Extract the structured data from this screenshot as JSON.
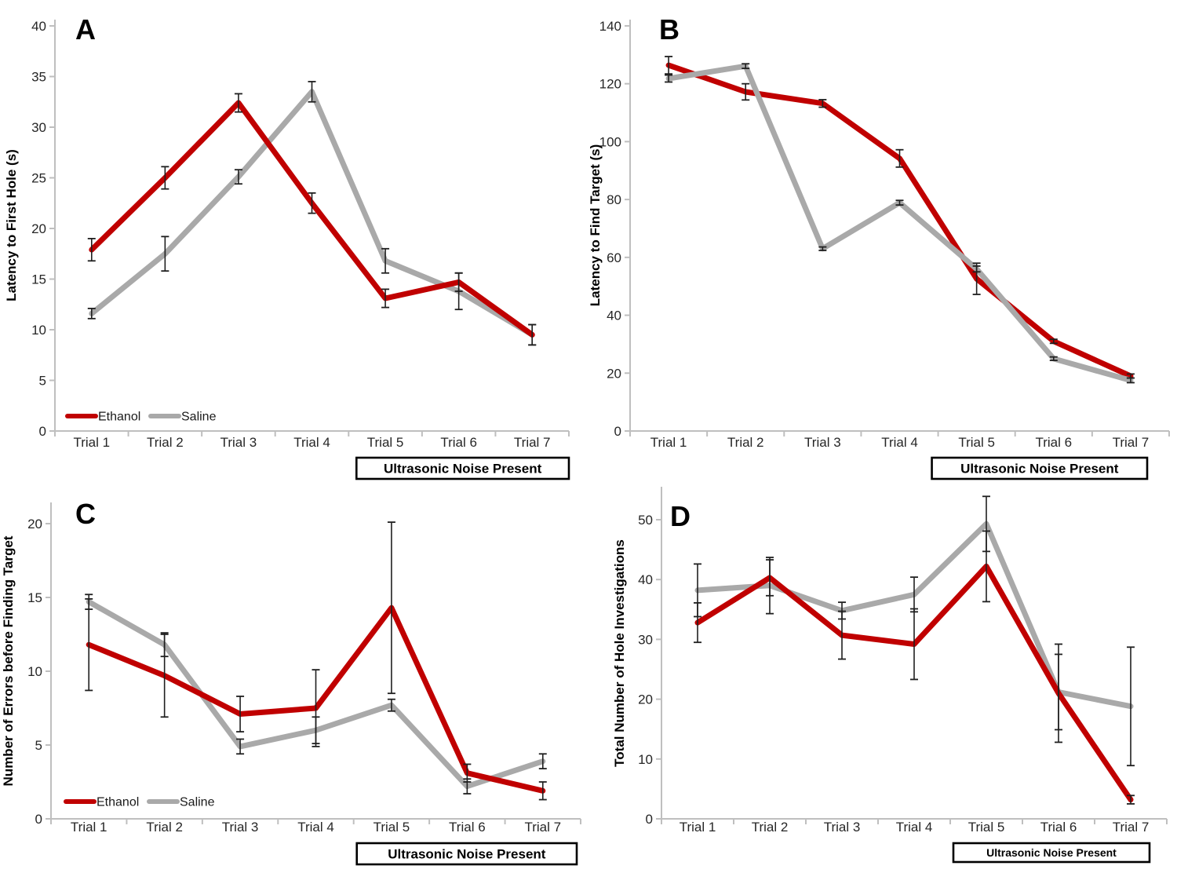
{
  "figure_title": "",
  "legend": {
    "ethanol_label": "Ethanol",
    "saline_label": "Saline"
  },
  "noise_box_label": "Ultrasonic Noise Present",
  "colors": {
    "ethanol": "#C00000",
    "saline": "#A9A9A9",
    "axis": "#BFBFBF",
    "error_bar": "#1F1F1F",
    "box_border": "#000000",
    "text": "#262626"
  },
  "categories": [
    "Trial 1",
    "Trial 2",
    "Trial 3",
    "Trial 4",
    "Trial 5",
    "Trial 6",
    "Trial 7"
  ],
  "chart_data": [
    {
      "id": "A",
      "type": "line",
      "letter": "A",
      "ylabel": "Latency to First Hole (s)",
      "xlabel": "",
      "ylim": [
        0,
        40
      ],
      "yticks": [
        0,
        5,
        10,
        15,
        20,
        25,
        30,
        35,
        40
      ],
      "grid": false,
      "legend_position": "bottom-left-inside",
      "show_legend": true,
      "noise_annotation_trials": [
        5,
        6,
        7
      ],
      "draw_top": "ethanol",
      "series": [
        {
          "name": "Ethanol",
          "color_key": "ethanol",
          "values": [
            17.9,
            25.0,
            32.4,
            22.5,
            13.1,
            14.7,
            9.5
          ],
          "errors": [
            1.1,
            1.1,
            0.9,
            1.0,
            0.9,
            0.9,
            1.0
          ]
        },
        {
          "name": "Saline",
          "color_key": "saline",
          "values": [
            11.6,
            17.5,
            25.1,
            33.5,
            16.8,
            13.8,
            9.5
          ],
          "errors": [
            0.5,
            1.7,
            0.7,
            1.0,
            1.2,
            1.8,
            1.0
          ]
        }
      ]
    },
    {
      "id": "B",
      "type": "line",
      "letter": "B",
      "ylabel": "Latency to Find Target (s)",
      "xlabel": "",
      "ylim": [
        0,
        140
      ],
      "yticks": [
        0,
        20,
        40,
        60,
        80,
        100,
        120,
        140
      ],
      "grid": false,
      "legend_position": "none",
      "show_legend": false,
      "noise_annotation_trials": [
        5,
        6,
        7
      ],
      "draw_top": "saline",
      "series": [
        {
          "name": "Ethanol",
          "color_key": "ethanol",
          "values": [
            126.4,
            117.2,
            113.2,
            94.2,
            52.6,
            31.0,
            19.0
          ],
          "errors": [
            3.0,
            2.8,
            1.3,
            3.0,
            5.4,
            0.7,
            0.7
          ]
        },
        {
          "name": "Saline",
          "color_key": "saline",
          "values": [
            121.8,
            126.1,
            63.0,
            78.9,
            56.0,
            25.0,
            17.5
          ],
          "errors": [
            1.2,
            0.8,
            0.6,
            0.8,
            1.0,
            0.6,
            0.8
          ]
        }
      ]
    },
    {
      "id": "C",
      "type": "line",
      "letter": "C",
      "ylabel": "Number of Errors before Finding Target",
      "xlabel": "",
      "ylim": [
        0,
        20
      ],
      "yticks": [
        0,
        5,
        10,
        15,
        20
      ],
      "grid": false,
      "legend_position": "bottom-left-inside",
      "show_legend": true,
      "noise_annotation_trials": [
        5,
        6,
        7
      ],
      "draw_top": "ethanol",
      "series": [
        {
          "name": "Ethanol",
          "color_key": "ethanol",
          "values": [
            11.8,
            9.7,
            7.1,
            7.5,
            14.3,
            3.1,
            1.9
          ],
          "errors": [
            3.1,
            2.8,
            1.2,
            2.6,
            5.8,
            0.6,
            0.6
          ]
        },
        {
          "name": "Saline",
          "color_key": "saline",
          "values": [
            14.7,
            11.8,
            4.9,
            6.0,
            7.7,
            2.2,
            3.9
          ],
          "errors": [
            0.5,
            0.8,
            0.5,
            0.9,
            0.4,
            0.5,
            0.5
          ]
        }
      ]
    },
    {
      "id": "D",
      "type": "line",
      "letter": "D",
      "ylabel": "Total Number of Hole Investigations",
      "xlabel": "",
      "ylim": [
        0,
        50
      ],
      "yticks": [
        0,
        10,
        20,
        30,
        40,
        50
      ],
      "grid": false,
      "legend_position": "none",
      "show_legend": false,
      "noise_annotation_trials": [
        5,
        6,
        7
      ],
      "draw_top": "ethanol",
      "series": [
        {
          "name": "Ethanol",
          "color_key": "ethanol",
          "values": [
            32.8,
            40.3,
            30.7,
            29.2,
            42.2,
            21.0,
            3.2
          ],
          "errors": [
            3.3,
            3.0,
            4.0,
            5.9,
            5.9,
            8.2,
            0.7
          ]
        },
        {
          "name": "Saline",
          "color_key": "saline",
          "values": [
            38.2,
            39.0,
            34.8,
            37.5,
            49.3,
            21.2,
            18.8
          ],
          "errors": [
            4.4,
            4.7,
            1.4,
            2.9,
            4.6,
            6.3,
            9.9
          ]
        }
      ]
    }
  ]
}
